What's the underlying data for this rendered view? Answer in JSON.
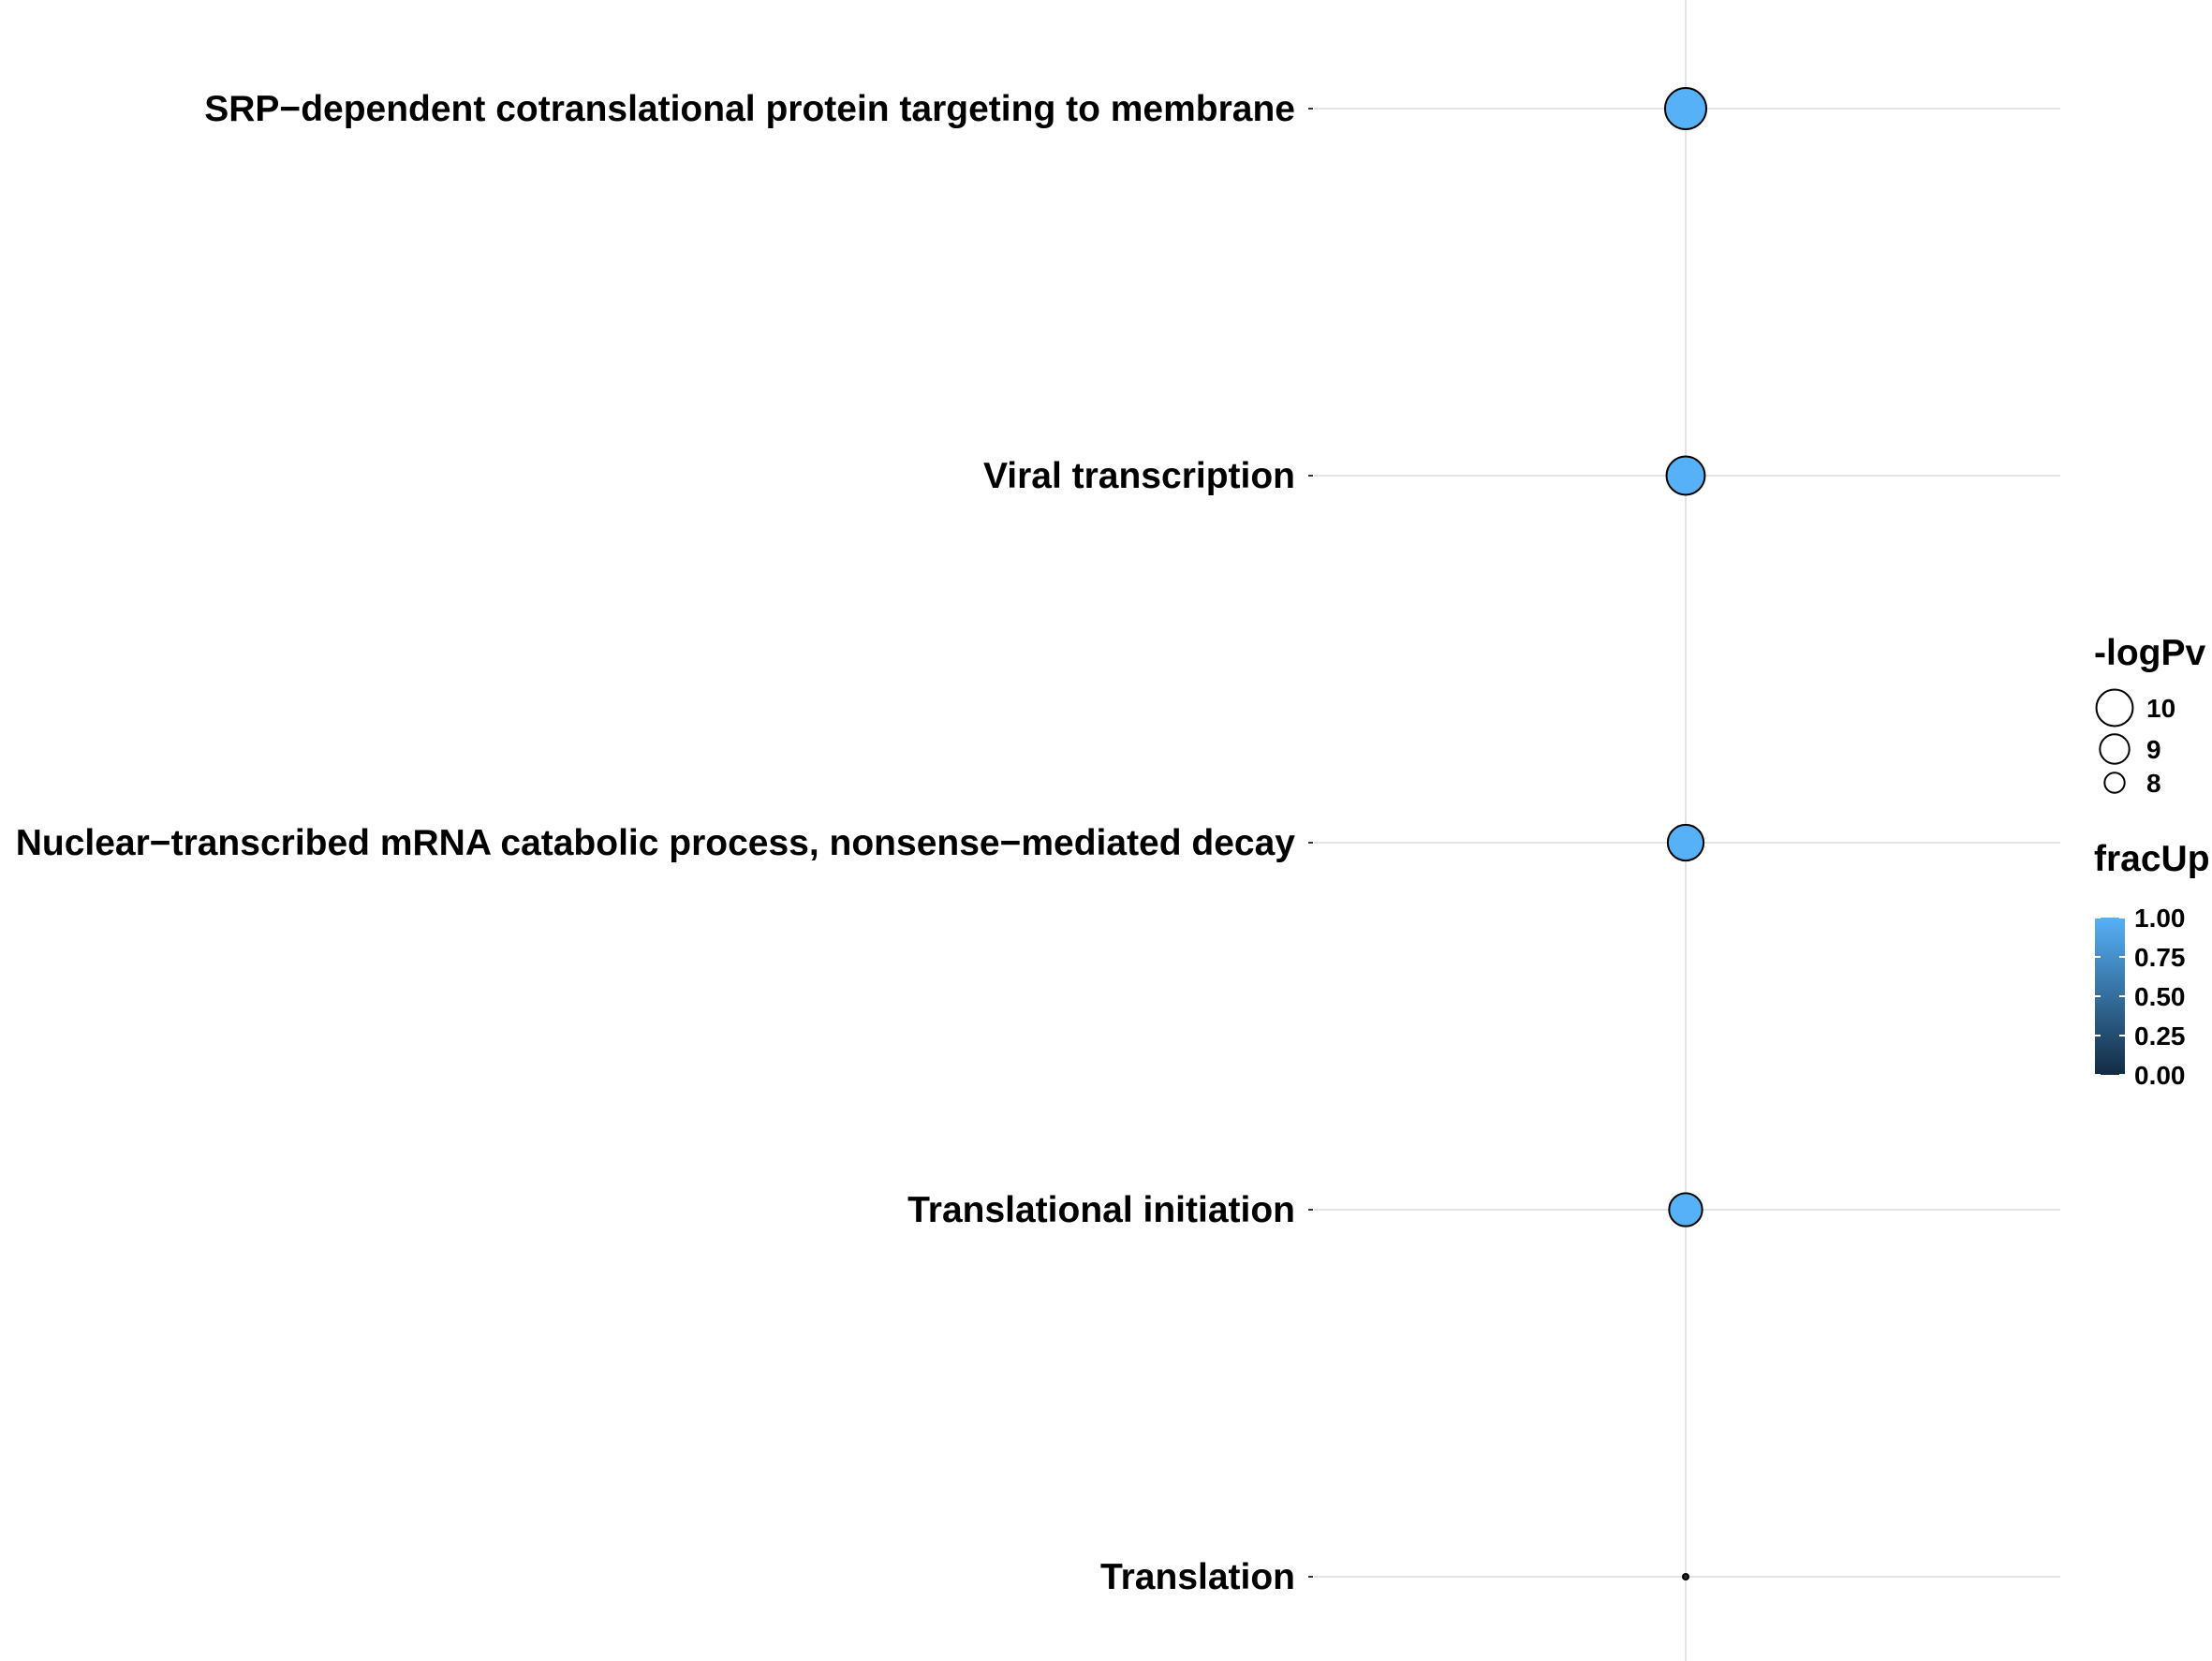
{
  "chart_data": {
    "type": "scatter",
    "title": "",
    "xlabel": "",
    "ylabel": "",
    "categories": [
      "SRP−dependent cotranslational protein targeting to membrane",
      "Viral transcription",
      "Nuclear−transcribed mRNA catabolic process, nonsense−mediated decay",
      "Translational initiation",
      "Translation"
    ],
    "series": [
      {
        "points": [
          {
            "category": "SRP−dependent cotranslational protein targeting to membrane",
            "logPv": 10.8,
            "fracUp": 1.0
          },
          {
            "category": "Viral transcription",
            "logPv": 10.3,
            "fracUp": 1.0
          },
          {
            "category": "Nuclear−transcribed mRNA catabolic process, nonsense−mediated decay",
            "logPv": 9.9,
            "fracUp": 1.0
          },
          {
            "category": "Translational initiation",
            "logPv": 9.5,
            "fracUp": 1.0
          },
          {
            "category": "Translation",
            "logPv": 7.2,
            "fracUp": 0.0
          }
        ]
      }
    ],
    "grid": true,
    "legend": {
      "placement": "right",
      "size": {
        "title": "-logPv",
        "breaks": [
          10,
          9,
          8
        ]
      },
      "color": {
        "title": "fracUp",
        "ticks": [
          "1.00",
          "0.75",
          "0.50",
          "0.25",
          "0.00"
        ],
        "range": [
          0,
          1
        ],
        "low_color": "#132B43",
        "high_color": "#56B1F7"
      }
    }
  }
}
